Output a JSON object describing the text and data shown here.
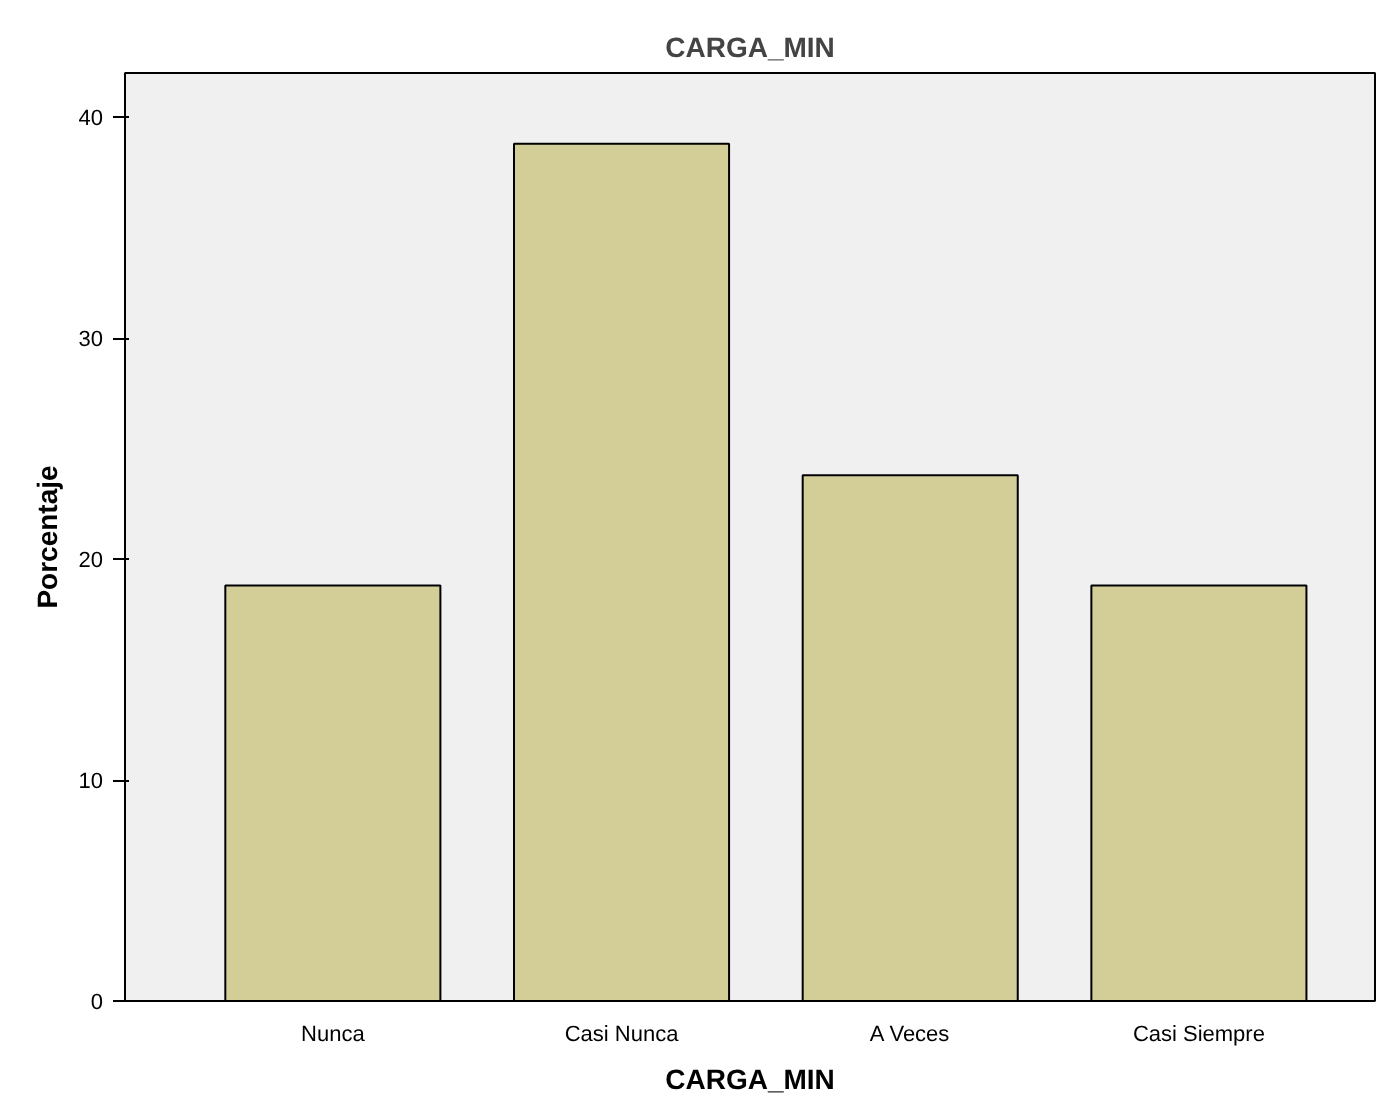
{
  "chart_data": {
    "type": "bar",
    "title": "CARGA_MIN",
    "xlabel": "CARGA_MIN",
    "ylabel": "Porcentaje",
    "categories": [
      "Nunca",
      "Casi Nunca",
      "A Veces",
      "Casi Siempre"
    ],
    "values": [
      18.8,
      38.8,
      23.8,
      18.8
    ],
    "color": "#d3ce97",
    "ylim": [
      0,
      42
    ],
    "yticks": [
      0,
      10,
      20,
      30,
      40
    ],
    "grid": false
  }
}
